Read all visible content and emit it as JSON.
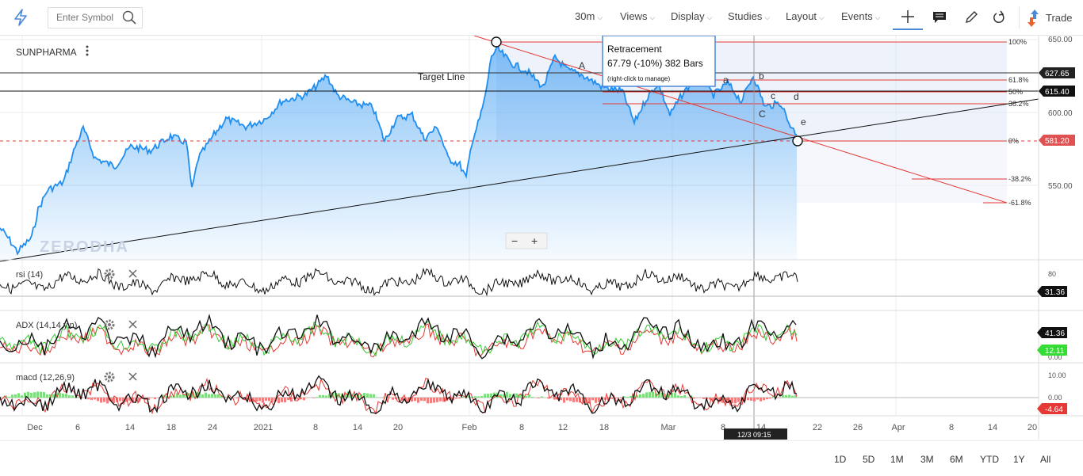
{
  "toolbar": {
    "search_placeholder": "Enter Symbol",
    "interval": "30m",
    "views": "Views",
    "display": "Display",
    "studies": "Studies",
    "layout": "Layout",
    "events": "Events",
    "trade": "Trade"
  },
  "chart": {
    "symbol": "SUNPHARMA",
    "watermark": "ZERODHA",
    "zoom_minus": "−",
    "zoom_plus": "+",
    "target_line": "Target Line",
    "tooltip": {
      "title": "Retracement",
      "detail": "67.79 (-10%) 382 Bars",
      "hint": "(right-click to manage)"
    },
    "fib_levels": [
      "100%",
      "61.8%",
      "50%",
      "38.2%",
      "0%",
      "-38.2%",
      "-61.8%"
    ],
    "wave_labels": [
      "A",
      "a",
      "b",
      "c",
      "d",
      "C",
      "e"
    ],
    "price_axis": [
      "650.00",
      "600.00",
      "550.00"
    ],
    "price_badges": {
      "p1": "627.65",
      "p2": "615.40",
      "p3": "581.20"
    },
    "x_axis": [
      "Dec",
      "6",
      "14",
      "18",
      "24",
      "2021",
      "8",
      "14",
      "20",
      "Feb",
      "8",
      "12",
      "18",
      "Mar",
      "8",
      "14",
      "22",
      "26",
      "Apr",
      "8",
      "14",
      "20"
    ],
    "crosshair_time": "12/3 09:15",
    "colors": {
      "price_line": "#1f8ef1",
      "fib": "#e53935",
      "down": "#e53935",
      "up": "#33cc33"
    }
  },
  "panels": {
    "rsi": {
      "label": "rsi (14)",
      "axis": "80",
      "value": "31.36"
    },
    "adx": {
      "label": "ADX (14,14,y,n)",
      "value1": "41.36",
      "value2": "12.11",
      "axis": "0.00"
    },
    "macd": {
      "label": "macd (12,26,9)",
      "axis_top": "10.00",
      "axis_zero": "0.00",
      "value": "-4.64"
    }
  },
  "ranges": [
    "1D",
    "5D",
    "1M",
    "3M",
    "6M",
    "YTD",
    "1Y",
    "All"
  ]
}
